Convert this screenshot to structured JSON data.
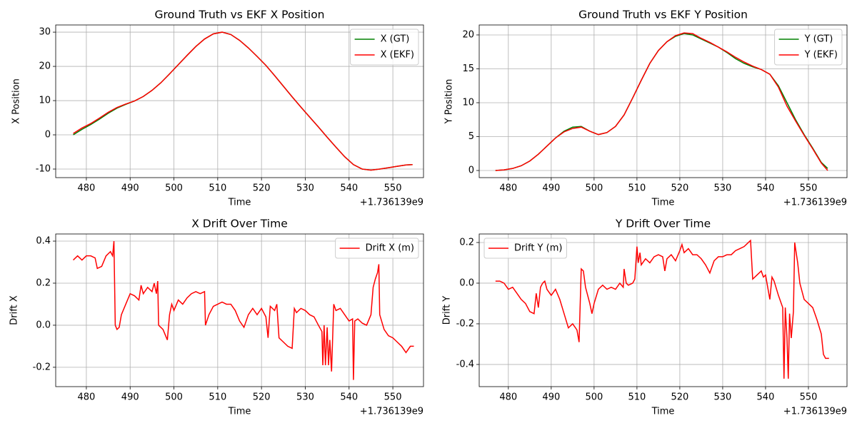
{
  "chart_data": [
    {
      "type": "line",
      "title": "Ground Truth vs EKF X Position",
      "xlabel": "Time",
      "ylabel": "X Position",
      "x_offset_label": "+1.736139e9",
      "x": [
        477,
        479,
        481,
        483,
        485,
        487,
        489,
        491,
        493,
        495,
        497,
        499,
        501,
        503,
        505,
        507,
        509,
        511,
        513,
        515,
        517,
        519,
        521,
        523,
        525,
        527,
        529,
        531,
        533,
        535,
        537,
        539,
        541,
        543,
        545,
        547,
        549,
        551,
        553,
        554.5
      ],
      "series": [
        {
          "name": "X (GT)",
          "color": "#008000",
          "values": [
            0,
            1.6,
            3.0,
            4.6,
            6.3,
            7.8,
            8.9,
            9.9,
            11.2,
            13.0,
            15.2,
            17.8,
            20.5,
            23.2,
            25.8,
            28.0,
            29.5,
            30.0,
            29.3,
            27.6,
            25.4,
            22.9,
            20.3,
            17.3,
            14.2,
            11.1,
            8.1,
            5.2,
            2.3,
            -0.7,
            -3.6,
            -6.4,
            -8.7,
            -10.0,
            -10.3,
            -10.0,
            -9.6,
            -9.2,
            -8.8,
            -8.7
          ]
        },
        {
          "name": "X (EKF)",
          "color": "#ff0000",
          "values": [
            0.4,
            2.0,
            3.3,
            4.9,
            6.6,
            8.0,
            9.0,
            9.9,
            11.2,
            13.0,
            15.2,
            17.8,
            20.5,
            23.2,
            25.8,
            28.0,
            29.5,
            30.0,
            29.3,
            27.6,
            25.4,
            22.9,
            20.3,
            17.3,
            14.2,
            11.1,
            8.1,
            5.2,
            2.3,
            -0.7,
            -3.6,
            -6.4,
            -8.7,
            -10.0,
            -10.3,
            -10.0,
            -9.6,
            -9.2,
            -8.8,
            -8.7
          ]
        }
      ],
      "xlim": [
        473.0,
        557.0
      ],
      "ylim": [
        -12.5,
        32.1
      ],
      "xticks": [
        480,
        490,
        500,
        510,
        520,
        530,
        540,
        550
      ],
      "yticks": [
        -10,
        0,
        10,
        20,
        30
      ],
      "grid": true,
      "legend": "upper right"
    },
    {
      "type": "line",
      "title": "Ground Truth vs EKF Y Position",
      "xlabel": "Time",
      "ylabel": "Y Position",
      "x_offset_label": "+1.736139e9",
      "x": [
        477,
        479,
        481,
        483,
        485,
        487,
        489,
        491,
        493,
        495,
        497,
        499,
        501,
        503,
        505,
        507,
        509,
        511,
        513,
        515,
        517,
        519,
        521,
        523,
        525,
        527,
        529,
        531,
        533,
        535,
        537,
        539,
        541,
        543,
        545,
        547,
        549,
        551,
        553,
        554.5
      ],
      "series": [
        {
          "name": "Y (GT)",
          "color": "#008000",
          "values": [
            0,
            0.1,
            0.3,
            0.7,
            1.4,
            2.4,
            3.6,
            4.8,
            5.8,
            6.4,
            6.5,
            5.8,
            5.3,
            5.6,
            6.5,
            8.2,
            10.7,
            13.3,
            15.8,
            17.7,
            19.0,
            19.8,
            20.2,
            20.0,
            19.4,
            18.8,
            18.2,
            17.4,
            16.5,
            15.8,
            15.3,
            14.9,
            14.2,
            12.5,
            10.0,
            7.5,
            5.3,
            3.3,
            1.2,
            0.3
          ]
        },
        {
          "name": "Y (EKF)",
          "color": "#ff0000",
          "values": [
            0,
            0.1,
            0.3,
            0.7,
            1.4,
            2.4,
            3.6,
            4.8,
            5.7,
            6.2,
            6.4,
            5.8,
            5.3,
            5.6,
            6.5,
            8.2,
            10.7,
            13.3,
            15.8,
            17.7,
            19.0,
            19.9,
            20.3,
            20.2,
            19.5,
            18.9,
            18.2,
            17.5,
            16.7,
            16.0,
            15.4,
            14.9,
            14.2,
            12.3,
            9.5,
            7.3,
            5.2,
            3.2,
            1.1,
            0.0
          ]
        }
      ],
      "xlim": [
        473.2,
        559.0
      ],
      "ylim": [
        -1.05,
        21.47
      ],
      "xticks": [
        480,
        490,
        500,
        510,
        520,
        530,
        540,
        550
      ],
      "yticks": [
        0,
        5,
        10,
        15,
        20
      ],
      "grid": true,
      "legend": "upper right"
    },
    {
      "type": "line",
      "title": "X Drift Over Time",
      "xlabel": "Time",
      "ylabel": "Drift X",
      "x_offset_label": "+1.736139e9",
      "x": [
        477,
        478,
        479,
        480,
        481,
        482,
        482.5,
        483.5,
        484.5,
        485.5,
        486,
        486.3,
        486.6,
        487,
        487.5,
        488,
        489,
        490,
        491,
        492,
        492.5,
        493,
        494,
        495,
        495.5,
        496,
        496.3,
        496.5,
        497.5,
        498.5,
        499,
        499.5,
        500,
        501,
        502,
        503,
        504,
        505,
        506,
        507,
        507.2,
        508,
        509,
        510,
        511,
        512,
        513,
        514,
        515,
        516,
        517,
        518,
        519,
        520,
        521,
        521.5,
        522,
        523,
        523.5,
        524,
        525,
        526,
        527,
        527.5,
        528,
        529,
        530,
        531,
        532,
        533,
        533.8,
        534,
        534.3,
        534.6,
        535,
        535.3,
        535.6,
        536,
        536.5,
        537,
        538,
        539,
        540,
        540.8,
        541,
        541.3,
        542,
        543,
        544,
        545,
        545.5,
        546,
        546.5,
        546.8,
        547,
        548,
        549,
        550,
        551,
        552,
        553,
        554,
        554.8
      ],
      "series": [
        {
          "name": "Drift X (m)",
          "color": "#ff0000",
          "values": [
            0.31,
            0.33,
            0.31,
            0.33,
            0.33,
            0.32,
            0.27,
            0.28,
            0.33,
            0.35,
            0.33,
            0.4,
            0,
            -0.02,
            -0.01,
            0.05,
            0.1,
            0.15,
            0.14,
            0.12,
            0.19,
            0.15,
            0.18,
            0.16,
            0.2,
            0.15,
            0.21,
            0,
            -0.02,
            -0.07,
            0.05,
            0.1,
            0.07,
            0.12,
            0.1,
            0.13,
            0.15,
            0.16,
            0.15,
            0.16,
            0.0,
            0.05,
            0.09,
            0.1,
            0.11,
            0.1,
            0.1,
            0.07,
            0.02,
            -0.01,
            0.05,
            0.08,
            0.05,
            0.08,
            0.04,
            -0.06,
            0.09,
            0.07,
            0.1,
            -0.06,
            -0.08,
            -0.1,
            -0.11,
            0.08,
            0.06,
            0.08,
            0.07,
            0.05,
            0.04,
            0.0,
            -0.03,
            -0.19,
            0.0,
            -0.19,
            -0.01,
            -0.19,
            -0.07,
            -0.22,
            0.1,
            0.07,
            0.08,
            0.05,
            0.02,
            0.03,
            -0.26,
            0.02,
            0.03,
            0.01,
            0.0,
            0.05,
            0.18,
            0.22,
            0.25,
            0.29,
            0.05,
            -0.02,
            -0.05,
            -0.06,
            -0.08,
            -0.1,
            -0.13,
            -0.1,
            -0.1
          ]
        }
      ],
      "xlim": [
        473.0,
        557.0
      ],
      "ylim": [
        -0.292,
        0.434
      ],
      "xticks": [
        480,
        490,
        500,
        510,
        520,
        530,
        540,
        550
      ],
      "yticks": [
        -0.2,
        {
          "value": 0,
          "label": "0.0"
        },
        0.2,
        0.4
      ],
      "grid": true,
      "legend": "upper right"
    },
    {
      "type": "line",
      "title": "Y Drift Over Time",
      "xlabel": "Time",
      "ylabel": "Drift Y",
      "x_offset_label": "+1.736139e9",
      "x": [
        477,
        478,
        479,
        480,
        481,
        482,
        483,
        484,
        485,
        486,
        486.5,
        487,
        487.5,
        488,
        488.5,
        489,
        490,
        491,
        492,
        493,
        494,
        495,
        496,
        496.5,
        497,
        497.5,
        498,
        499,
        499.5,
        500,
        501,
        502,
        503,
        504,
        505,
        506,
        506.8,
        507,
        507.5,
        508,
        509,
        509.5,
        510,
        510.3,
        510.7,
        511,
        512,
        513,
        514,
        515,
        516,
        516.5,
        517,
        518,
        519,
        520,
        520.5,
        521,
        522,
        523,
        524,
        525,
        526,
        527,
        528,
        529,
        530,
        531,
        532,
        533,
        534,
        535,
        536,
        536.5,
        537,
        538,
        539,
        539.5,
        540,
        541,
        541.5,
        542,
        543,
        544,
        544.3,
        544.6,
        545,
        545.3,
        545.6,
        546,
        546.5,
        546.8,
        547,
        547.5,
        548,
        549,
        550,
        551,
        552,
        553,
        553.5,
        554,
        554.8
      ],
      "series": [
        {
          "name": "Drift Y (m)",
          "color": "#ff0000",
          "values": [
            0.01,
            0.01,
            0.0,
            -0.03,
            -0.02,
            -0.05,
            -0.08,
            -0.1,
            -0.14,
            -0.15,
            -0.05,
            -0.12,
            -0.02,
            0.0,
            0.01,
            -0.03,
            -0.06,
            -0.03,
            -0.08,
            -0.15,
            -0.22,
            -0.2,
            -0.23,
            -0.29,
            0.07,
            0.06,
            -0.02,
            -0.1,
            -0.15,
            -0.1,
            -0.03,
            -0.01,
            -0.03,
            -0.02,
            -0.03,
            0.0,
            -0.02,
            0.07,
            0.0,
            -0.01,
            0.0,
            0.02,
            0.18,
            0.1,
            0.15,
            0.09,
            0.12,
            0.1,
            0.13,
            0.14,
            0.13,
            0.06,
            0.12,
            0.14,
            0.11,
            0.16,
            0.19,
            0.15,
            0.17,
            0.14,
            0.14,
            0.12,
            0.09,
            0.05,
            0.11,
            0.13,
            0.13,
            0.14,
            0.14,
            0.16,
            0.17,
            0.18,
            0.2,
            0.21,
            0.02,
            0.04,
            0.06,
            0.03,
            0.04,
            -0.08,
            0.03,
            0.01,
            -0.06,
            -0.12,
            -0.47,
            -0.12,
            -0.27,
            -0.47,
            -0.15,
            -0.27,
            -0.14,
            0.2,
            0.17,
            0.1,
            0.0,
            -0.08,
            -0.1,
            -0.12,
            -0.18,
            -0.25,
            -0.35,
            -0.37,
            -0.37
          ]
        }
      ],
      "xlim": [
        473.2,
        559.0
      ],
      "ylim": [
        -0.509,
        0.242
      ],
      "xticks": [
        480,
        490,
        500,
        510,
        520,
        530,
        540,
        550
      ],
      "yticks": [
        -0.4,
        -0.2,
        {
          "value": 0,
          "label": "0.0"
        },
        0.2
      ],
      "grid": true,
      "legend": "upper left"
    }
  ]
}
